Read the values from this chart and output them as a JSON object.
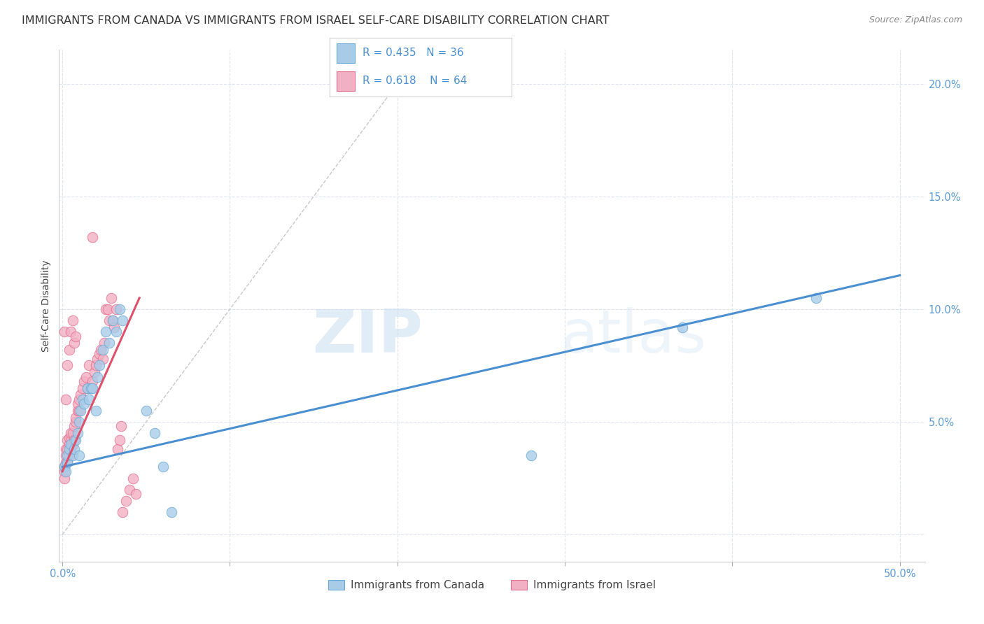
{
  "title": "IMMIGRANTS FROM CANADA VS IMMIGRANTS FROM ISRAEL SELF-CARE DISABILITY CORRELATION CHART",
  "source": "Source: ZipAtlas.com",
  "ylabel": "Self-Care Disability",
  "x_ticks": [
    0.0,
    0.1,
    0.2,
    0.3,
    0.4,
    0.5
  ],
  "x_tick_labels_show": [
    "0.0%",
    "",
    "",
    "",
    "",
    "50.0%"
  ],
  "y_ticks": [
    0.0,
    0.05,
    0.1,
    0.15,
    0.2
  ],
  "y_tick_labels": [
    "",
    "5.0%",
    "10.0%",
    "15.0%",
    "20.0%"
  ],
  "xlim": [
    -0.002,
    0.515
  ],
  "ylim": [
    -0.012,
    0.215
  ],
  "canada_color": "#a8cce8",
  "israel_color": "#f2b0c4",
  "canada_edge": "#6aaad4",
  "israel_edge": "#e07090",
  "trend_canada_color": "#4a8fd0",
  "trend_israel_color": "#e0506a",
  "ref_line_color": "#c8c8c8",
  "legend_R_canada": "0.435",
  "legend_N_canada": "36",
  "legend_R_israel": "0.618",
  "legend_N_israel": "64",
  "legend_label_canada": "Immigrants from Canada",
  "legend_label_israel": "Immigrants from Israel",
  "grid_color": "#dde4ee",
  "background_color": "#ffffff",
  "title_fontsize": 11.5,
  "axis_label_fontsize": 10,
  "tick_fontsize": 10.5,
  "canada_x": [
    0.001,
    0.002,
    0.003,
    0.003,
    0.004,
    0.005,
    0.006,
    0.007,
    0.008,
    0.009,
    0.01,
    0.01,
    0.011,
    0.012,
    0.013,
    0.015,
    0.016,
    0.017,
    0.018,
    0.02,
    0.021,
    0.022,
    0.024,
    0.026,
    0.028,
    0.03,
    0.032,
    0.034,
    0.036,
    0.05,
    0.055,
    0.06,
    0.065,
    0.28,
    0.37,
    0.45
  ],
  "canada_y": [
    0.03,
    0.028,
    0.032,
    0.035,
    0.038,
    0.04,
    0.035,
    0.038,
    0.042,
    0.045,
    0.035,
    0.05,
    0.055,
    0.06,
    0.058,
    0.065,
    0.06,
    0.065,
    0.065,
    0.055,
    0.07,
    0.075,
    0.082,
    0.09,
    0.085,
    0.095,
    0.09,
    0.1,
    0.095,
    0.055,
    0.045,
    0.03,
    0.01,
    0.035,
    0.092,
    0.105
  ],
  "israel_x": [
    0.001,
    0.001,
    0.001,
    0.002,
    0.002,
    0.002,
    0.003,
    0.003,
    0.003,
    0.004,
    0.004,
    0.004,
    0.005,
    0.005,
    0.005,
    0.006,
    0.006,
    0.007,
    0.007,
    0.008,
    0.008,
    0.009,
    0.009,
    0.01,
    0.01,
    0.011,
    0.012,
    0.013,
    0.014,
    0.015,
    0.016,
    0.017,
    0.018,
    0.019,
    0.02,
    0.021,
    0.022,
    0.023,
    0.024,
    0.025,
    0.026,
    0.027,
    0.028,
    0.029,
    0.03,
    0.031,
    0.032,
    0.033,
    0.034,
    0.035,
    0.036,
    0.038,
    0.04,
    0.042,
    0.044,
    0.001,
    0.002,
    0.003,
    0.004,
    0.005,
    0.006,
    0.007,
    0.008,
    0.018
  ],
  "israel_y": [
    0.03,
    0.028,
    0.025,
    0.032,
    0.035,
    0.038,
    0.032,
    0.038,
    0.042,
    0.035,
    0.04,
    0.043,
    0.038,
    0.042,
    0.045,
    0.04,
    0.045,
    0.042,
    0.048,
    0.05,
    0.052,
    0.055,
    0.058,
    0.055,
    0.06,
    0.062,
    0.065,
    0.068,
    0.07,
    0.065,
    0.075,
    0.065,
    0.068,
    0.072,
    0.075,
    0.078,
    0.08,
    0.082,
    0.078,
    0.085,
    0.1,
    0.1,
    0.095,
    0.105,
    0.095,
    0.092,
    0.1,
    0.038,
    0.042,
    0.048,
    0.01,
    0.015,
    0.02,
    0.025,
    0.018,
    0.09,
    0.06,
    0.075,
    0.082,
    0.09,
    0.095,
    0.085,
    0.088,
    0.132
  ],
  "canada_trend_x": [
    0.0,
    0.5
  ],
  "canada_trend_y": [
    0.03,
    0.115
  ],
  "israel_trend_x": [
    0.0,
    0.046
  ],
  "israel_trend_y": [
    0.028,
    0.105
  ]
}
